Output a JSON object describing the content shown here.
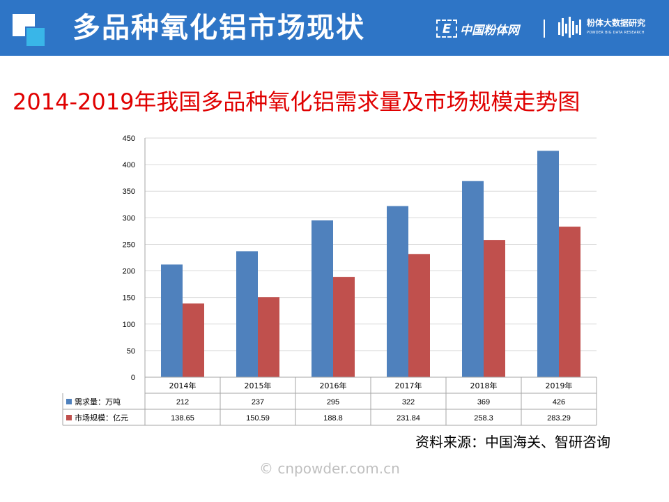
{
  "header": {
    "title": "多品种氧化铝市场现状",
    "brand_mark": "E",
    "brand1": "中国粉体网",
    "brand2": "粉体大数据研究",
    "brand2_sub": "POWDER BIG DATA RESEARCH"
  },
  "subtitle": "2014-2019年我国多品种氧化铝需求量及市场规模走势图",
  "chart_data": {
    "type": "bar",
    "categories": [
      "2014年",
      "2015年",
      "2016年",
      "2017年",
      "2018年",
      "2019年"
    ],
    "series": [
      {
        "name": "需求量：万吨",
        "color": "#4f81bd",
        "values": [
          212,
          237,
          295,
          322,
          369,
          426
        ]
      },
      {
        "name": "市场规模：亿元",
        "color": "#c0504d",
        "values": [
          138.65,
          150.59,
          188.8,
          231.84,
          258.3,
          283.29
        ]
      }
    ],
    "table_rows": [
      [
        "212",
        "237",
        "295",
        "322",
        "369",
        "426"
      ],
      [
        "138.65",
        "150.59",
        "188.8",
        "231.84",
        "258.3",
        "283.29"
      ]
    ],
    "ylim": [
      0,
      450
    ],
    "yticks": [
      "0",
      "50",
      "100",
      "150",
      "200",
      "250",
      "300",
      "350",
      "400",
      "450"
    ],
    "grid": true,
    "legend": "data-table"
  },
  "source": "资料来源：中国海关、智研咨询",
  "watermark": "© cnpowder.com.cn"
}
